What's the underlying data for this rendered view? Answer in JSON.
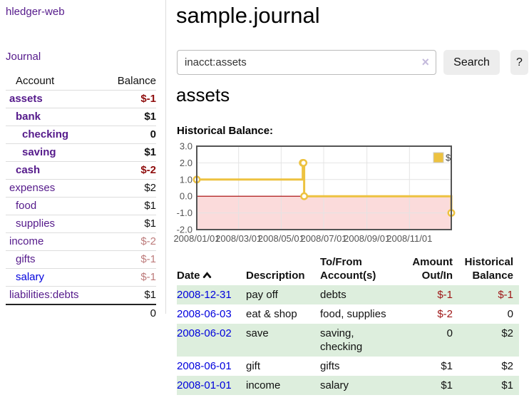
{
  "colors": {
    "link_purple": "#551a8b",
    "link_blue": "#0000dd",
    "negative_strong": "#8f0d0d",
    "negative_soft": "#bd7b7b",
    "negative_table": "#9e1616",
    "row_green": "#ddeedd",
    "chart_line": "#EDC240",
    "chart_negative_fill": "#fbdbdb",
    "chart_zero_line": "#a40000",
    "chart_grid": "#e4e4e4",
    "chart_border": "#545454"
  },
  "sidebar": {
    "app_title": "hledger-web",
    "journal_link": "Journal",
    "accounts_table": {
      "headers": {
        "account": "Account",
        "balance": "Balance"
      },
      "rows": [
        {
          "name": "assets",
          "depth": 1,
          "balance": "$-1",
          "emph": true
        },
        {
          "name": "bank",
          "depth": 2,
          "balance": "$1",
          "emph": true
        },
        {
          "name": "checking",
          "depth": 3,
          "balance": "0",
          "emph": true
        },
        {
          "name": "saving",
          "depth": 3,
          "balance": "$1",
          "emph": true
        },
        {
          "name": "cash",
          "depth": 2,
          "balance": "$-2",
          "emph": true
        },
        {
          "name": "expenses",
          "depth": 1,
          "balance": "$2",
          "emph": false
        },
        {
          "name": "food",
          "depth": 2,
          "balance": "$1",
          "emph": false
        },
        {
          "name": "supplies",
          "depth": 2,
          "balance": "$1",
          "emph": false
        },
        {
          "name": "income",
          "depth": 1,
          "balance": "$-2",
          "emph": false
        },
        {
          "name": "gifts",
          "depth": 2,
          "balance": "$-1",
          "emph": false
        },
        {
          "name": "salary",
          "depth": 2,
          "balance": "$-1",
          "emph": false,
          "link_style": "unvisited"
        },
        {
          "name": "liabilities:debts",
          "depth": 1,
          "balance": "$1",
          "emph": false
        }
      ],
      "total": "0"
    }
  },
  "main": {
    "title": "sample.journal",
    "search": {
      "value": "inacct:assets",
      "clear_icon": "×",
      "button_label": "Search",
      "help_label": "?"
    },
    "account_heading": "assets",
    "chart_label": "Historical Balance:",
    "register_table": {
      "headers": {
        "date": "Date",
        "description": "Description",
        "accounts": "To/From\nAccount(s)",
        "amount": "Amount\nOut/In",
        "balance": "Historical\nBalance"
      },
      "rows": [
        {
          "date": "2008-12-31",
          "description": "pay off",
          "accounts": "debts",
          "amount": "$-1",
          "balance": "$-1"
        },
        {
          "date": "2008-06-03",
          "description": "eat & shop",
          "accounts": "food, supplies",
          "amount": "$-2",
          "balance": "0"
        },
        {
          "date": "2008-06-02",
          "description": "save",
          "accounts": "saving,\nchecking",
          "amount": "0",
          "balance": "$2"
        },
        {
          "date": "2008-06-01",
          "description": "gift",
          "accounts": "gifts",
          "amount": "$1",
          "balance": "$2"
        },
        {
          "date": "2008-01-01",
          "description": "income",
          "accounts": "salary",
          "amount": "$1",
          "balance": "$1"
        }
      ]
    }
  },
  "chart_data": {
    "type": "line",
    "title": "Historical Balance:",
    "step": true,
    "legend": {
      "label": "$",
      "position": "top-right"
    },
    "x_range": [
      "2008-01-01",
      "2008-12-31"
    ],
    "ylim": [
      -2,
      3
    ],
    "yticks": [
      {
        "v": 3,
        "label": "3.0"
      },
      {
        "v": 2,
        "label": "2.0"
      },
      {
        "v": 1,
        "label": "1.0"
      },
      {
        "v": 0,
        "label": "0.0"
      },
      {
        "v": -1,
        "label": "-1.0"
      },
      {
        "v": -2,
        "label": "-2.0"
      }
    ],
    "xticks": [
      {
        "date": "2008-01-01",
        "label": "2008/01/01"
      },
      {
        "date": "2008-03-01",
        "label": "2008/03/01"
      },
      {
        "date": "2008-05-01",
        "label": "2008/05/01"
      },
      {
        "date": "2008-07-01",
        "label": "2008/07/01"
      },
      {
        "date": "2008-09-01",
        "label": "2008/09/01"
      },
      {
        "date": "2008-11-01",
        "label": "2008/11/01"
      }
    ],
    "series": [
      {
        "name": "$",
        "points": [
          {
            "date": "2008-01-01",
            "value": 1
          },
          {
            "date": "2008-06-01",
            "value": 2
          },
          {
            "date": "2008-06-02",
            "value": 2
          },
          {
            "date": "2008-06-03",
            "value": 0
          },
          {
            "date": "2008-12-31",
            "value": -1
          }
        ]
      }
    ],
    "negative_region_below": 0,
    "grid": true
  }
}
